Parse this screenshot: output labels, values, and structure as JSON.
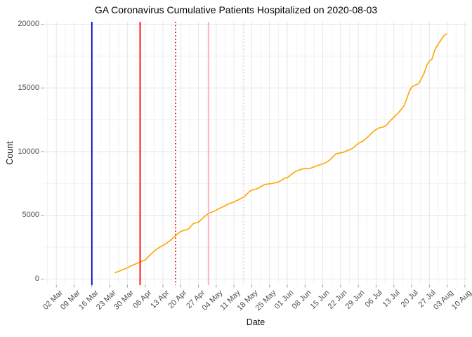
{
  "title": "GA Coronavirus Cumulative Patients Hospitalized on 2020-08-03",
  "chart_data": {
    "type": "line",
    "title": "GA Coronavirus Cumulative Patients Hospitalized on 2020-08-03",
    "xlabel": "Date",
    "ylabel": "Count",
    "legend": "none",
    "grid": "major+minor",
    "background": "#ffffff",
    "major_grid_color": "#e6e6e6",
    "minor_grid_color": "#f2f2f2",
    "tick_mark_color": "#999999",
    "ylim": [
      0,
      20000
    ],
    "y_ticks": [
      {
        "value": 0,
        "label": "0"
      },
      {
        "value": 5000,
        "label": "5000"
      },
      {
        "value": 10000,
        "label": "10000"
      },
      {
        "value": 15000,
        "label": "15000"
      },
      {
        "value": 20000,
        "label": "20000"
      }
    ],
    "y_minor_ticks": [
      2500,
      7500,
      12500,
      17500
    ],
    "x_ticks": [
      {
        "date": "2020-03-02",
        "label": "02 Mar"
      },
      {
        "date": "2020-03-09",
        "label": "09 Mar"
      },
      {
        "date": "2020-03-16",
        "label": "16 Mar"
      },
      {
        "date": "2020-03-23",
        "label": "23 Mar"
      },
      {
        "date": "2020-03-30",
        "label": "30 Mar"
      },
      {
        "date": "2020-04-06",
        "label": "06 Apr"
      },
      {
        "date": "2020-04-13",
        "label": "13 Apr"
      },
      {
        "date": "2020-04-20",
        "label": "20 Apr"
      },
      {
        "date": "2020-04-27",
        "label": "27 Apr"
      },
      {
        "date": "2020-05-04",
        "label": "04 May"
      },
      {
        "date": "2020-05-11",
        "label": "11 May"
      },
      {
        "date": "2020-05-18",
        "label": "18 May"
      },
      {
        "date": "2020-05-25",
        "label": "25 May"
      },
      {
        "date": "2020-06-01",
        "label": "01 Jun"
      },
      {
        "date": "2020-06-08",
        "label": "08 Jun"
      },
      {
        "date": "2020-06-15",
        "label": "15 Jun"
      },
      {
        "date": "2020-06-22",
        "label": "22 Jun"
      },
      {
        "date": "2020-06-29",
        "label": "29 Jun"
      },
      {
        "date": "2020-07-06",
        "label": "06 Jul"
      },
      {
        "date": "2020-07-13",
        "label": "13 Jul"
      },
      {
        "date": "2020-07-20",
        "label": "20 Jul"
      },
      {
        "date": "2020-07-27",
        "label": "27 Jul"
      },
      {
        "date": "2020-08-03",
        "label": "03 Aug"
      },
      {
        "date": "2020-08-10",
        "label": "10 Aug"
      }
    ],
    "x_minor_offset_days": 3.5,
    "vlines": [
      {
        "name": "blue-solid-vline",
        "date": "2020-03-16",
        "color": "#0000CD",
        "style": "solid"
      },
      {
        "name": "red-solid-vline",
        "date": "2020-04-04",
        "color": "#FF0000",
        "style": "solid"
      },
      {
        "name": "red-dotted-vline",
        "date": "2020-04-18",
        "color": "#E00000",
        "style": "dotted"
      },
      {
        "name": "pink-solid-vline",
        "date": "2020-05-01",
        "color": "#FFB0BC",
        "style": "solid"
      },
      {
        "name": "pink-dotted-vline",
        "date": "2020-05-15",
        "color": "#FFC6CE",
        "style": "dotted"
      }
    ],
    "series": [
      {
        "name": "Cumulative Patients Hospitalized",
        "color": "#FFA500",
        "points": [
          [
            "2020-03-25",
            480
          ],
          [
            "2020-03-26",
            560
          ],
          [
            "2020-03-27",
            640
          ],
          [
            "2020-03-28",
            720
          ],
          [
            "2020-03-29",
            800
          ],
          [
            "2020-03-30",
            900
          ],
          [
            "2020-03-31",
            990
          ],
          [
            "2020-04-01",
            1080
          ],
          [
            "2020-04-02",
            1160
          ],
          [
            "2020-04-03",
            1250
          ],
          [
            "2020-04-04",
            1330
          ],
          [
            "2020-04-05",
            1420
          ],
          [
            "2020-04-06",
            1500
          ],
          [
            "2020-04-07",
            1720
          ],
          [
            "2020-04-08",
            1900
          ],
          [
            "2020-04-09",
            2090
          ],
          [
            "2020-04-10",
            2270
          ],
          [
            "2020-04-11",
            2400
          ],
          [
            "2020-04-12",
            2530
          ],
          [
            "2020-04-13",
            2640
          ],
          [
            "2020-04-14",
            2750
          ],
          [
            "2020-04-15",
            2900
          ],
          [
            "2020-04-16",
            3060
          ],
          [
            "2020-04-17",
            3230
          ],
          [
            "2020-04-18",
            3410
          ],
          [
            "2020-04-19",
            3580
          ],
          [
            "2020-04-20",
            3740
          ],
          [
            "2020-04-21",
            3800
          ],
          [
            "2020-04-22",
            3860
          ],
          [
            "2020-04-23",
            3920
          ],
          [
            "2020-04-24",
            4140
          ],
          [
            "2020-04-25",
            4350
          ],
          [
            "2020-04-26",
            4410
          ],
          [
            "2020-04-27",
            4470
          ],
          [
            "2020-04-28",
            4650
          ],
          [
            "2020-04-29",
            4840
          ],
          [
            "2020-04-30",
            5000
          ],
          [
            "2020-05-01",
            5150
          ],
          [
            "2020-05-02",
            5230
          ],
          [
            "2020-05-03",
            5300
          ],
          [
            "2020-05-04",
            5410
          ],
          [
            "2020-05-05",
            5520
          ],
          [
            "2020-05-06",
            5610
          ],
          [
            "2020-05-07",
            5700
          ],
          [
            "2020-05-08",
            5820
          ],
          [
            "2020-05-09",
            5900
          ],
          [
            "2020-05-10",
            5980
          ],
          [
            "2020-05-11",
            6050
          ],
          [
            "2020-05-12",
            6150
          ],
          [
            "2020-05-13",
            6250
          ],
          [
            "2020-05-14",
            6350
          ],
          [
            "2020-05-15",
            6440
          ],
          [
            "2020-05-16",
            6650
          ],
          [
            "2020-05-17",
            6860
          ],
          [
            "2020-05-18",
            6970
          ],
          [
            "2020-05-19",
            7030
          ],
          [
            "2020-05-20",
            7080
          ],
          [
            "2020-05-21",
            7190
          ],
          [
            "2020-05-22",
            7300
          ],
          [
            "2020-05-23",
            7410
          ],
          [
            "2020-05-24",
            7450
          ],
          [
            "2020-05-25",
            7480
          ],
          [
            "2020-05-26",
            7500
          ],
          [
            "2020-05-27",
            7550
          ],
          [
            "2020-05-28",
            7600
          ],
          [
            "2020-05-29",
            7660
          ],
          [
            "2020-05-30",
            7790
          ],
          [
            "2020-05-31",
            7920
          ],
          [
            "2020-06-01",
            7960
          ],
          [
            "2020-06-02",
            8110
          ],
          [
            "2020-06-03",
            8270
          ],
          [
            "2020-06-04",
            8420
          ],
          [
            "2020-06-05",
            8500
          ],
          [
            "2020-06-06",
            8580
          ],
          [
            "2020-06-07",
            8650
          ],
          [
            "2020-06-08",
            8670
          ],
          [
            "2020-06-09",
            8680
          ],
          [
            "2020-06-10",
            8690
          ],
          [
            "2020-06-11",
            8760
          ],
          [
            "2020-06-12",
            8840
          ],
          [
            "2020-06-13",
            8910
          ],
          [
            "2020-06-14",
            8980
          ],
          [
            "2020-06-15",
            9050
          ],
          [
            "2020-06-16",
            9120
          ],
          [
            "2020-06-17",
            9250
          ],
          [
            "2020-06-18",
            9390
          ],
          [
            "2020-06-19",
            9590
          ],
          [
            "2020-06-20",
            9790
          ],
          [
            "2020-06-21",
            9870
          ],
          [
            "2020-06-22",
            9900
          ],
          [
            "2020-06-23",
            9940
          ],
          [
            "2020-06-24",
            10030
          ],
          [
            "2020-06-25",
            10120
          ],
          [
            "2020-06-26",
            10180
          ],
          [
            "2020-06-27",
            10300
          ],
          [
            "2020-06-28",
            10470
          ],
          [
            "2020-06-29",
            10650
          ],
          [
            "2020-06-30",
            10750
          ],
          [
            "2020-07-01",
            10850
          ],
          [
            "2020-07-02",
            11020
          ],
          [
            "2020-07-03",
            11200
          ],
          [
            "2020-07-04",
            11400
          ],
          [
            "2020-07-05",
            11600
          ],
          [
            "2020-07-06",
            11730
          ],
          [
            "2020-07-07",
            11850
          ],
          [
            "2020-07-08",
            11900
          ],
          [
            "2020-07-09",
            11950
          ],
          [
            "2020-07-10",
            12050
          ],
          [
            "2020-07-11",
            12300
          ],
          [
            "2020-07-12",
            12500
          ],
          [
            "2020-07-13",
            12700
          ],
          [
            "2020-07-14",
            12900
          ],
          [
            "2020-07-15",
            13100
          ],
          [
            "2020-07-16",
            13350
          ],
          [
            "2020-07-17",
            13600
          ],
          [
            "2020-07-18",
            14100
          ],
          [
            "2020-07-19",
            14700
          ],
          [
            "2020-07-20",
            15050
          ],
          [
            "2020-07-21",
            15200
          ],
          [
            "2020-07-22",
            15250
          ],
          [
            "2020-07-23",
            15400
          ],
          [
            "2020-07-24",
            15800
          ],
          [
            "2020-07-25",
            16200
          ],
          [
            "2020-07-26",
            16800
          ],
          [
            "2020-07-27",
            17100
          ],
          [
            "2020-07-28",
            17250
          ],
          [
            "2020-07-29",
            17900
          ],
          [
            "2020-07-30",
            18300
          ],
          [
            "2020-07-31",
            18600
          ],
          [
            "2020-08-01",
            18900
          ],
          [
            "2020-08-02",
            19150
          ],
          [
            "2020-08-03",
            19250
          ]
        ]
      }
    ]
  }
}
